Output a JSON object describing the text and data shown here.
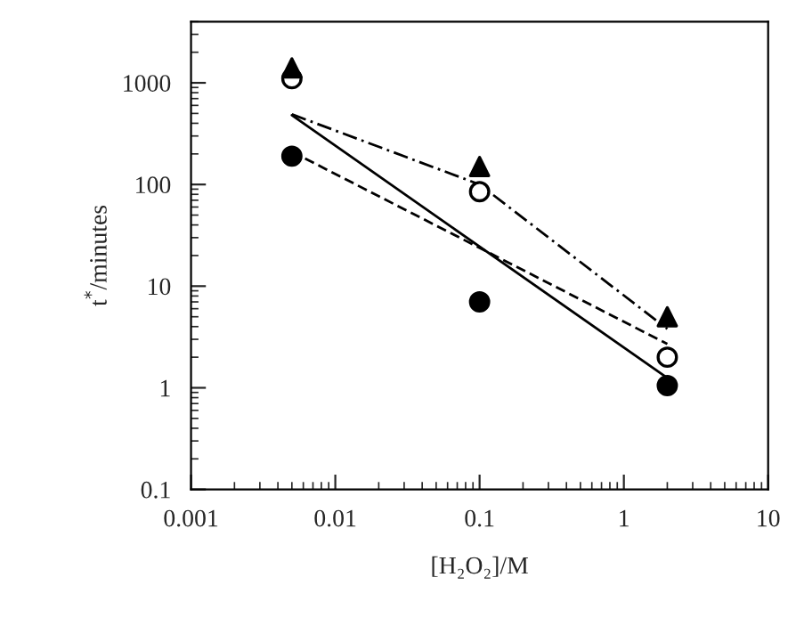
{
  "chart_data": {
    "type": "scatter",
    "xlabel": "[H₂O₂]/M",
    "ylabel": "t$^{*}$/minutes",
    "log": "xy",
    "grid": false,
    "xlim": [
      0.001,
      10
    ],
    "xticks": [
      0.001,
      0.01,
      0.1,
      1,
      10
    ],
    "ylim": [
      0.1,
      4000
    ],
    "yticks": [
      0.1,
      1,
      10,
      100,
      1000
    ],
    "x": [
      0.005,
      0.1,
      2
    ],
    "series": [
      {
        "marker": "circle",
        "color": "#000000",
        "values": [
          190,
          7,
          1.05
        ]
      },
      {
        "marker": "circle",
        "color": "#ffffff",
        "values": [
          1100,
          85,
          2
        ]
      },
      {
        "marker": "triangle",
        "color": "#000000",
        "values": [
          1400,
          150,
          5
        ]
      },
      {
        "type": "line",
        "marker": "none",
        "line_style": "solid",
        "color": "#000000",
        "x": [
          0.005,
          2
        ],
        "values": [
          480,
          1.25
        ]
      },
      {
        "type": "line",
        "marker": "none",
        "line_style": "dashed",
        "color": "#000000",
        "x": [
          0.005,
          2
        ],
        "values": [
          210,
          2.7
        ]
      },
      {
        "type": "line",
        "marker": "none",
        "line_style": "dashdot",
        "color": "#000000",
        "x": [
          0.005,
          0.1,
          2
        ],
        "values": [
          490,
          100,
          3.8
        ]
      }
    ]
  }
}
